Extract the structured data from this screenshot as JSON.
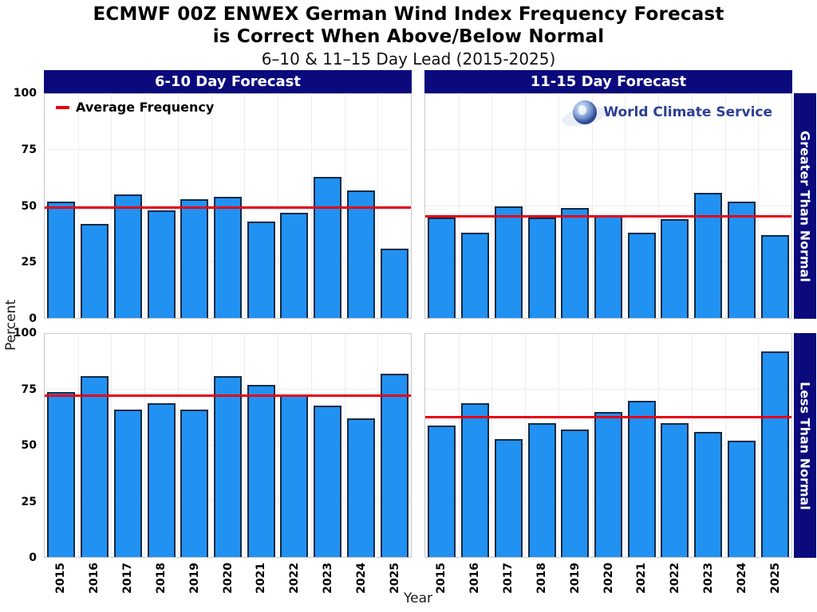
{
  "title": {
    "line1": "ECMWF 00Z ENWEX German Wind Index Frequency Forecast",
    "line2": "is Correct When Above/Below Normal",
    "subtitle": "6–10 & 11–15 Day Lead (2015-2025)"
  },
  "legend": {
    "label": "Average Frequency"
  },
  "logo": {
    "text": "World Climate Service"
  },
  "axes": {
    "y_label": "Percent",
    "x_label": "Year",
    "y_ticks": [
      100,
      75,
      50,
      25,
      0
    ],
    "ylim": [
      0,
      100
    ]
  },
  "colors": {
    "header_bg": "#0a0a7d",
    "bar_fill": "#2191f2",
    "bar_edge": "#142a45",
    "avg_line": "#e60012",
    "logo_text": "#2b3f94"
  },
  "chart_data": {
    "type": "bar",
    "categories": [
      "2015",
      "2016",
      "2017",
      "2018",
      "2019",
      "2020",
      "2021",
      "2022",
      "2023",
      "2024",
      "2025"
    ],
    "col_headers": [
      "6-10 Day Forecast",
      "11-15 Day Forecast"
    ],
    "row_headers": [
      "Greater Than Normal",
      "Less Than Normal"
    ],
    "ylim": [
      0,
      100
    ],
    "grid": true,
    "legend_position": "upper-left of first panel",
    "panels": [
      {
        "column": "6-10 Day Forecast",
        "row": "Greater Than Normal",
        "values": [
          52,
          42,
          55,
          48,
          53,
          54,
          43,
          47,
          63,
          57,
          31
        ],
        "average": 49.5
      },
      {
        "column": "11-15 Day Forecast",
        "row": "Greater Than Normal",
        "values": [
          45,
          38,
          50,
          45,
          49,
          46,
          38,
          44,
          56,
          52,
          37
        ],
        "average": 45.5
      },
      {
        "column": "6-10 Day Forecast",
        "row": "Less Than Normal",
        "values": [
          74,
          81,
          66,
          69,
          66,
          81,
          77,
          73,
          68,
          62,
          82
        ],
        "average": 72.5
      },
      {
        "column": "11-15 Day Forecast",
        "row": "Less Than Normal",
        "values": [
          59,
          69,
          53,
          60,
          57,
          65,
          70,
          60,
          56,
          52,
          92
        ],
        "average": 63
      }
    ]
  }
}
